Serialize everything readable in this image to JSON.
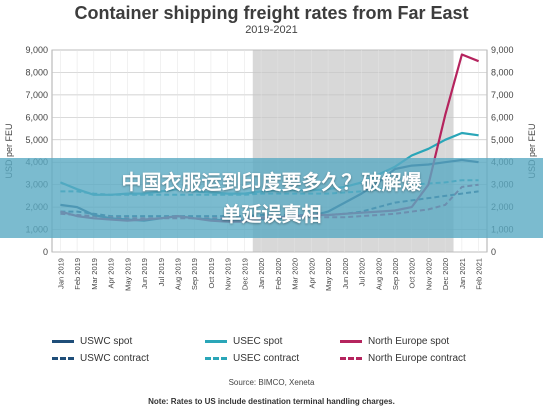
{
  "chart_data": {
    "type": "line",
    "title": "Container shipping freight rates from Far East",
    "subtitle": "2019-2021",
    "ylabel": "USD per FEU",
    "ylim": [
      0,
      9000
    ],
    "yticks": [
      "0",
      "1,000",
      "2,000",
      "3,000",
      "4,000",
      "5,000",
      "6,000",
      "7,000",
      "8,000",
      "9,000"
    ],
    "categories": [
      "Jan 2019",
      "Feb 2019",
      "Mar 2019",
      "Apr 2019",
      "May 2019",
      "Jun 2019",
      "Jul 2019",
      "Aug 2019",
      "Sep 2019",
      "Oct 2019",
      "Nov 2019",
      "Dec 2019",
      "Jan 2020",
      "Feb 2020",
      "Mar 2020",
      "Apr 2020",
      "May 2020",
      "Jun 2020",
      "Jul 2020",
      "Aug 2020",
      "Sep 2020",
      "Oct 2020",
      "Nov 2020",
      "Dec 2020",
      "Jan 2021",
      "Feb 2021"
    ],
    "shaded_range": [
      "Jan 2020",
      "Dec 2020"
    ],
    "grid": true,
    "series": [
      {
        "name": "USWC spot",
        "color": "#1f4e79",
        "dashed": false,
        "values": [
          2100,
          2000,
          1650,
          1500,
          1450,
          1400,
          1500,
          1600,
          1500,
          1450,
          1400,
          1400,
          1450,
          1500,
          1550,
          1600,
          1800,
          2200,
          2600,
          3100,
          3700,
          3850,
          3900,
          4000,
          4100,
          4000
        ]
      },
      {
        "name": "USWC contract",
        "color": "#1f4e79",
        "dashed": true,
        "values": [
          1800,
          1800,
          1700,
          1600,
          1600,
          1600,
          1600,
          1600,
          1600,
          1600,
          1600,
          1600,
          1650,
          1650,
          1650,
          1650,
          1650,
          1700,
          1800,
          2000,
          2200,
          2300,
          2400,
          2500,
          2600,
          2700
        ]
      },
      {
        "name": "USEC spot",
        "color": "#2aa6b8",
        "dashed": false,
        "values": [
          3100,
          2800,
          2550,
          2550,
          2600,
          2600,
          2700,
          2800,
          2700,
          2650,
          2600,
          2600,
          2700,
          2750,
          2750,
          2750,
          2800,
          2900,
          3100,
          3450,
          3800,
          4300,
          4600,
          5000,
          5300,
          5200
        ]
      },
      {
        "name": "USEC contract",
        "color": "#2aa6b8",
        "dashed": true,
        "values": [
          2700,
          2700,
          2600,
          2550,
          2550,
          2550,
          2550,
          2550,
          2550,
          2550,
          2550,
          2550,
          2600,
          2600,
          2600,
          2600,
          2600,
          2650,
          2700,
          2800,
          2900,
          3000,
          3050,
          3100,
          3200,
          3200
        ]
      },
      {
        "name": "North Europe spot",
        "color": "#b5245e",
        "dashed": false,
        "values": [
          1800,
          1600,
          1500,
          1450,
          1400,
          1450,
          1500,
          1600,
          1500,
          1400,
          1350,
          1350,
          1500,
          1550,
          1600,
          1650,
          1650,
          1700,
          1750,
          1800,
          1850,
          2000,
          3000,
          6100,
          8800,
          8500
        ]
      },
      {
        "name": "North Europe contract",
        "color": "#b5245e",
        "dashed": true,
        "values": [
          1700,
          1650,
          1600,
          1550,
          1500,
          1500,
          1500,
          1500,
          1500,
          1500,
          1500,
          1500,
          1550,
          1550,
          1550,
          1550,
          1550,
          1550,
          1600,
          1650,
          1700,
          1800,
          1900,
          2100,
          2900,
          3000
        ]
      }
    ]
  },
  "legend": {
    "items": [
      {
        "label": "USWC spot",
        "color": "#1f4e79",
        "dashed": false
      },
      {
        "label": "USEC spot",
        "color": "#2aa6b8",
        "dashed": false
      },
      {
        "label": "North Europe spot",
        "color": "#b5245e",
        "dashed": false
      },
      {
        "label": "USWC contract",
        "color": "#1f4e79",
        "dashed": true
      },
      {
        "label": "USEC contract",
        "color": "#2aa6b8",
        "dashed": true
      },
      {
        "label": "North Europe contract",
        "color": "#b5245e",
        "dashed": true
      }
    ]
  },
  "source": "Source: BIMCO, Xeneta",
  "note": "Note: Rates to US include destination terminal handling charges.",
  "banner": {
    "line1": "中国衣服运到印度要多久？破解爆",
    "line2": "单延误真相"
  }
}
